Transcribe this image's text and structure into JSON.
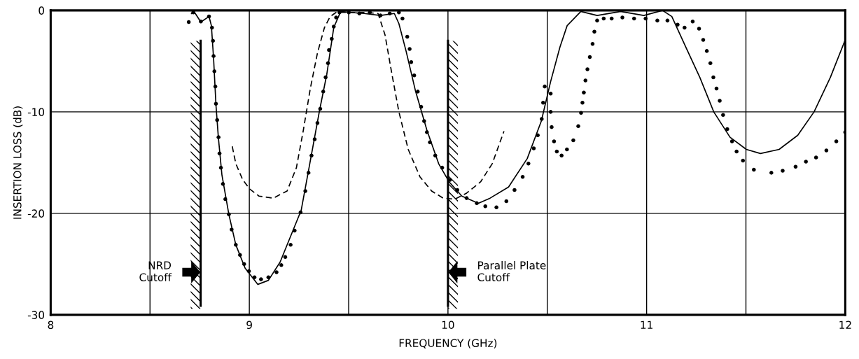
{
  "chart_data": {
    "type": "line",
    "xlabel": "FREQUENCY (GHz)",
    "ylabel": "INSERTION LOSS (dB)",
    "xlim": [
      8,
      12
    ],
    "ylim": [
      -30,
      0
    ],
    "xticks": [
      8,
      {
        "value": 8.5,
        "label": null
      },
      9,
      {
        "value": 9.5,
        "label": null
      },
      10,
      {
        "value": 10.5,
        "label": null
      },
      11,
      {
        "value": 11.5,
        "label": null
      },
      12
    ],
    "yticks": [
      {
        "value": -30,
        "label": "-30"
      },
      {
        "value": -20,
        "label": "-20"
      },
      {
        "value": -10,
        "label": "-10"
      },
      0
    ],
    "grid": true,
    "legend": false,
    "series": [
      {
        "color": "#000000",
        "line_style": "solid",
        "marker": "none",
        "x": [
          8.709,
          8.721,
          8.756,
          8.797,
          8.809,
          8.82,
          8.832,
          8.844,
          8.862,
          8.897,
          8.932,
          8.979,
          9.043,
          9.096,
          9.155,
          9.261,
          9.296,
          9.354,
          9.39,
          9.425,
          9.46,
          9.507,
          9.578,
          9.66,
          9.73,
          9.753,
          9.789,
          9.836,
          9.894,
          9.953,
          10.006,
          10.07,
          10.153,
          10.212,
          10.305,
          10.399,
          10.47,
          10.517,
          10.564,
          10.6,
          10.669,
          10.751,
          10.869,
          10.986,
          11.08,
          11.127,
          11.197,
          11.268,
          11.338,
          11.42,
          11.502,
          11.573,
          11.667,
          11.761,
          11.843,
          11.925,
          12.0
        ],
        "values": [
          -0.3,
          -0.1,
          -1.15,
          -0.6,
          -1.5,
          -4.7,
          -9.3,
          -12.5,
          -16.2,
          -20.1,
          -23.1,
          -25.4,
          -27.0,
          -26.6,
          -24.8,
          -19.7,
          -16.0,
          -9.8,
          -6.3,
          -1.7,
          -0.1,
          -0.2,
          -0.3,
          -0.5,
          -0.3,
          -1.3,
          -4.0,
          -7.9,
          -11.8,
          -15.1,
          -16.9,
          -18.3,
          -19.0,
          -18.5,
          -17.4,
          -14.6,
          -10.9,
          -7.0,
          -3.6,
          -1.5,
          -0.1,
          -0.5,
          -0.1,
          -0.5,
          0,
          -0.6,
          -3.6,
          -6.6,
          -10.0,
          -12.5,
          -13.7,
          -14.1,
          -13.7,
          -12.3,
          -10.0,
          -6.6,
          -2.9
        ]
      },
      {
        "type": "scatter",
        "color": "#000000",
        "marker": "circle",
        "x": [
          8.695,
          8.718,
          8.756,
          8.797,
          8.812,
          8.817,
          8.82,
          8.824,
          8.829,
          8.832,
          8.838,
          8.845,
          8.85,
          8.857,
          8.867,
          8.879,
          8.897,
          8.911,
          8.932,
          8.953,
          8.974,
          8.998,
          9.026,
          9.059,
          9.096,
          9.137,
          9.161,
          9.181,
          9.208,
          9.228,
          9.258,
          9.282,
          9.298,
          9.313,
          9.329,
          9.343,
          9.357,
          9.372,
          9.384,
          9.396,
          9.401,
          9.415,
          9.425,
          9.437,
          9.454,
          9.501,
          9.554,
          9.607,
          9.66,
          9.707,
          9.753,
          9.771,
          9.795,
          9.807,
          9.815,
          9.83,
          9.848,
          9.865,
          9.88,
          9.894,
          9.909,
          9.936,
          9.971,
          10.01,
          10.047,
          10.094,
          10.145,
          10.188,
          10.244,
          10.294,
          10.335,
          10.376,
          10.405,
          10.432,
          10.452,
          10.472,
          10.479,
          10.487,
          10.517,
          10.517,
          10.522,
          10.534,
          10.548,
          10.572,
          10.599,
          10.631,
          10.656,
          10.67,
          10.677,
          10.684,
          10.692,
          10.702,
          10.714,
          10.728,
          10.737,
          10.751,
          10.784,
          10.824,
          10.878,
          10.937,
          10.995,
          11.054,
          11.105,
          11.156,
          11.191,
          11.232,
          11.264,
          11.285,
          11.303,
          11.321,
          11.336,
          11.352,
          11.368,
          11.385,
          11.406,
          11.43,
          11.453,
          11.485,
          11.54,
          11.628,
          11.685,
          11.75,
          11.802,
          11.853,
          11.905,
          11.955,
          12.0
        ],
        "values": [
          -1.15,
          -0.2,
          -1.1,
          -0.6,
          -1.7,
          -3.0,
          -4.5,
          -6.0,
          -7.5,
          -9.2,
          -10.8,
          -12.5,
          -14.1,
          -15.5,
          -17.1,
          -18.6,
          -20.1,
          -21.6,
          -23.1,
          -24.1,
          -25.0,
          -25.7,
          -26.3,
          -26.5,
          -26.3,
          -25.8,
          -25.1,
          -24.3,
          -23.1,
          -21.7,
          -19.9,
          -17.8,
          -16.0,
          -14.3,
          -12.7,
          -11.1,
          -9.7,
          -8.0,
          -6.6,
          -5.2,
          -3.9,
          -2.8,
          -1.6,
          -0.7,
          -0.2,
          -0.2,
          -0.3,
          -0.2,
          -0.5,
          -0.3,
          -0.2,
          -0.8,
          -2.6,
          -3.8,
          -5.1,
          -6.4,
          -8.0,
          -9.5,
          -10.9,
          -12.0,
          -13.0,
          -14.3,
          -15.5,
          -16.7,
          -17.7,
          -18.5,
          -19.0,
          -19.3,
          -19.4,
          -18.8,
          -17.7,
          -16.4,
          -15.1,
          -13.6,
          -12.3,
          -10.7,
          -9.1,
          -7.5,
          -8.2,
          -10.0,
          -11.5,
          -12.9,
          -13.9,
          -14.3,
          -13.7,
          -12.8,
          -11.4,
          -10.1,
          -9.1,
          -8.1,
          -6.9,
          -5.8,
          -4.6,
          -3.3,
          -2.1,
          -1.0,
          -0.8,
          -0.8,
          -0.7,
          -0.8,
          -0.8,
          -1.0,
          -1.0,
          -1.4,
          -1.7,
          -1.1,
          -1.8,
          -2.9,
          -4.0,
          -5.2,
          -6.6,
          -7.7,
          -8.9,
          -10.3,
          -11.7,
          -12.9,
          -13.9,
          -14.8,
          -15.7,
          -16.0,
          -15.8,
          -15.4,
          -14.9,
          -14.5,
          -13.8,
          -12.9,
          -12.0
        ]
      },
      {
        "type": "line",
        "color": "#000000",
        "line_style": "dashed",
        "marker": "none",
        "x": [
          8.914,
          8.932,
          8.967,
          9.002,
          9.049,
          9.12,
          9.19,
          9.237,
          9.272,
          9.307,
          9.343,
          9.378,
          9.407,
          9.437,
          9.5,
          9.58,
          9.648,
          9.683,
          9.718,
          9.753,
          9.8,
          9.859,
          9.918,
          9.976,
          10.035,
          10.094,
          10.164,
          10.223,
          10.258,
          10.282
        ],
        "values": [
          -13.4,
          -15.1,
          -16.7,
          -17.6,
          -18.3,
          -18.5,
          -17.8,
          -15.5,
          -11.8,
          -7.7,
          -4.2,
          -1.7,
          -0.6,
          -0.2,
          -0.2,
          -0.2,
          -0.3,
          -2.4,
          -6.3,
          -10.0,
          -13.7,
          -16.4,
          -17.8,
          -18.5,
          -18.6,
          -18.0,
          -16.9,
          -15.1,
          -13.2,
          -11.9
        ]
      }
    ],
    "ref_lines": [
      {
        "axis": "x",
        "value": 8.755,
        "label": "NRD\nCutoff",
        "color": "#000000",
        "line_style": "solid"
      },
      {
        "axis": "x",
        "value": 10.0,
        "label": "Parallel Plate\nCutoff",
        "color": "#000000",
        "line_style": "solid"
      }
    ]
  }
}
